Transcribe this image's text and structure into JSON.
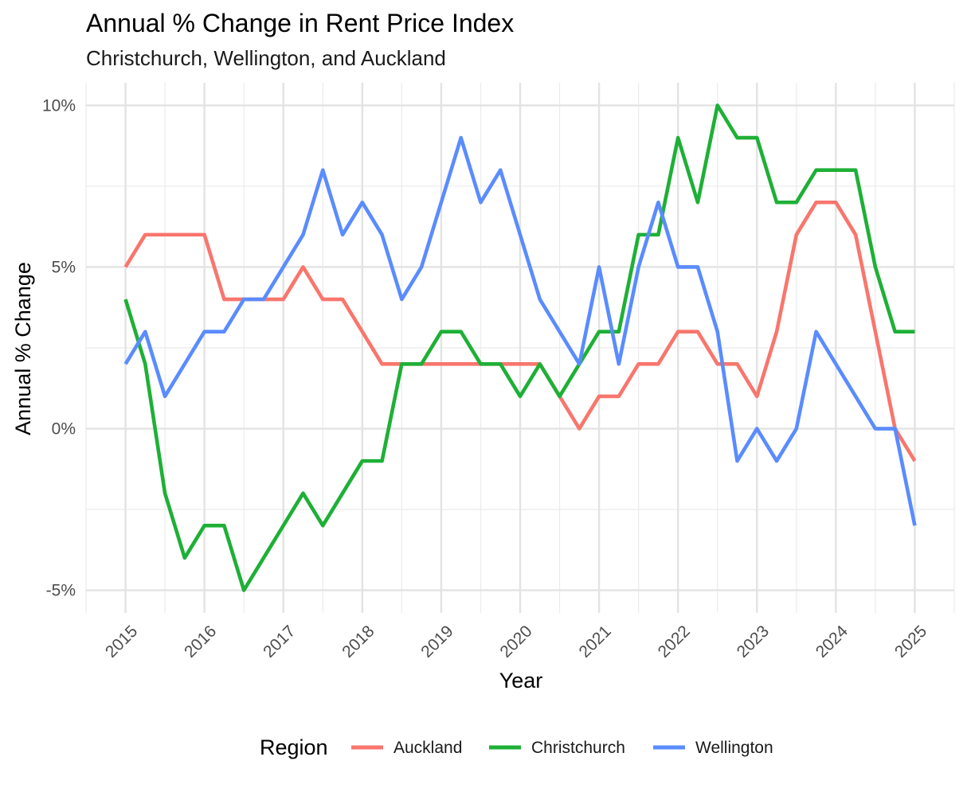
{
  "chart_data": {
    "type": "line",
    "title": "Annual % Change in Rent Price Index",
    "subtitle": "Christchurch, Wellington, and Auckland",
    "xlabel": "Year",
    "ylabel": "Annual % Change",
    "xlim": [
      2014.5,
      2025.5
    ],
    "ylim": [
      -5.7,
      10.7
    ],
    "x_ticks": [
      2015,
      2016,
      2017,
      2018,
      2019,
      2020,
      2021,
      2022,
      2023,
      2024,
      2025
    ],
    "x_tick_labels": [
      "2015",
      "2016",
      "2017",
      "2018",
      "2019",
      "2020",
      "2021",
      "2022",
      "2023",
      "2024",
      "2025"
    ],
    "y_ticks": [
      -5,
      0,
      5,
      10
    ],
    "y_tick_labels": [
      "-5%",
      "0%",
      "5%",
      "10%"
    ],
    "grid": true,
    "legend": {
      "title": "Region",
      "position": "bottom"
    },
    "x": [
      2015.0,
      2015.25,
      2015.5,
      2015.75,
      2016.0,
      2016.25,
      2016.5,
      2016.75,
      2017.0,
      2017.25,
      2017.5,
      2017.75,
      2018.0,
      2018.25,
      2018.5,
      2018.75,
      2019.0,
      2019.25,
      2019.5,
      2019.75,
      2020.0,
      2020.25,
      2020.5,
      2020.75,
      2021.0,
      2021.25,
      2021.5,
      2021.75,
      2022.0,
      2022.25,
      2022.5,
      2022.75,
      2023.0,
      2023.25,
      2023.5,
      2023.75,
      2024.0,
      2024.25,
      2024.5,
      2024.75,
      2025.0
    ],
    "series": [
      {
        "name": "Auckland",
        "color": "#F8766D",
        "values": [
          5,
          6,
          6,
          6,
          6,
          4,
          4,
          4,
          4,
          5,
          4,
          4,
          3,
          2,
          2,
          2,
          2,
          2,
          2,
          2,
          2,
          2,
          1,
          0,
          1,
          1,
          2,
          2,
          3,
          3,
          2,
          2,
          1,
          3,
          6,
          7,
          7,
          6,
          3,
          0,
          -1
        ]
      },
      {
        "name": "Christchurch",
        "color": "#1EB036",
        "values": [
          4,
          2,
          -2,
          -4,
          -3,
          -3,
          -5,
          -4,
          -3,
          -2,
          -3,
          -2,
          -1,
          -1,
          2,
          2,
          3,
          3,
          2,
          2,
          1,
          2,
          1,
          2,
          3,
          3,
          6,
          6,
          9,
          7,
          10,
          9,
          9,
          7,
          7,
          8,
          8,
          8,
          5,
          3,
          3
        ]
      },
      {
        "name": "Wellington",
        "color": "#5A8CFF",
        "values": [
          2,
          3,
          1,
          2,
          3,
          3,
          4,
          4,
          5,
          6,
          8,
          6,
          7,
          6,
          4,
          5,
          7,
          9,
          7,
          8,
          6,
          4,
          3,
          2,
          5,
          2,
          5,
          7,
          5,
          5,
          3,
          -1,
          0,
          -1,
          0,
          3,
          2,
          1,
          0,
          0,
          -3
        ]
      }
    ]
  }
}
